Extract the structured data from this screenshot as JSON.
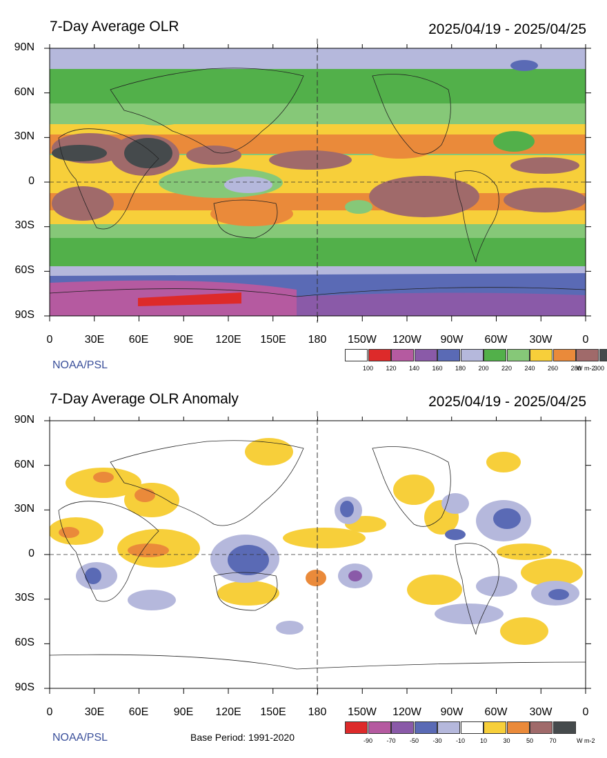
{
  "panels": [
    {
      "title": "7-Day Average OLR",
      "date_range": "2025/04/19 - 2025/04/25",
      "credit": "NOAA/PSL",
      "base_period": "",
      "units": "W m-2",
      "colorbar": {
        "colors": [
          "#ffffff",
          "#dd2a2a",
          "#b55aa0",
          "#8a5aa8",
          "#5a6ab5",
          "#b5b8dc",
          "#52b04a",
          "#86c878",
          "#f7cf3a",
          "#ea8a3a",
          "#a06a6a",
          "#454a4c"
        ],
        "labels": [
          "100",
          "120",
          "140",
          "160",
          "180",
          "200",
          "220",
          "240",
          "260",
          "280",
          "300"
        ]
      }
    },
    {
      "title": "7-Day Average OLR Anomaly",
      "date_range": "2025/04/19 - 2025/04/25",
      "credit": "NOAA/PSL",
      "base_period": "Base Period: 1991-2020",
      "units": "W m-2",
      "colorbar": {
        "colors": [
          "#dd2a2a",
          "#b55aa0",
          "#8a5aa8",
          "#5a6ab5",
          "#b5b8dc",
          "#ffffff",
          "#f7cf3a",
          "#ea8a3a",
          "#a06a6a",
          "#454a4c"
        ],
        "labels": [
          "-90",
          "-70",
          "-50",
          "-30",
          "-10",
          "10",
          "30",
          "50",
          "70"
        ]
      }
    }
  ],
  "axes": {
    "lat_labels": [
      "90N",
      "60N",
      "30N",
      "0",
      "30S",
      "60S",
      "90S"
    ],
    "lon_labels": [
      "0",
      "30E",
      "60E",
      "90E",
      "120E",
      "150E",
      "180",
      "150W",
      "120W",
      "90W",
      "60W",
      "30W",
      "0"
    ]
  }
}
